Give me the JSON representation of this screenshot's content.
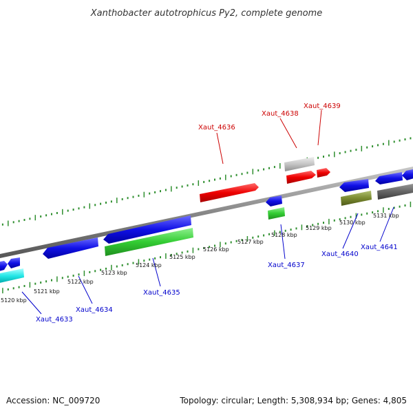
{
  "title": "Xanthobacter autotrophicus Py2, complete genome",
  "footer": {
    "accession": "Accession: NC_009720",
    "summary": "Topology: circular; Length: 5,308,934 bp; Genes: 4,805"
  },
  "colors": {
    "background": "#ffffff",
    "backbone": "#8a8a8a",
    "ticks": "#2f8f2f",
    "label_red": "#cc0000",
    "label_blue": "#0000cc"
  },
  "kbp_labels": [
    "5120 kbp",
    "5121 kbp",
    "5122 kbp",
    "5123 kbp",
    "5124 kbp",
    "5125 kbp",
    "5126 kbp",
    "5127 kbp",
    "5128 kbp",
    "5129 kbp",
    "5130 kbp",
    "5131 kbp"
  ],
  "gene_labels": [
    {
      "text": "Xaut_4636",
      "strand": "forward"
    },
    {
      "text": "Xaut_4638",
      "strand": "forward"
    },
    {
      "text": "Xaut_4639",
      "strand": "forward"
    },
    {
      "text": "Xaut_4633",
      "strand": "reverse"
    },
    {
      "text": "Xaut_4634",
      "strand": "reverse"
    },
    {
      "text": "Xaut_4635",
      "strand": "reverse"
    },
    {
      "text": "Xaut_4637",
      "strand": "reverse"
    },
    {
      "text": "Xaut_4640",
      "strand": "reverse"
    },
    {
      "text": "Xaut_4641",
      "strand": "reverse"
    }
  ]
}
